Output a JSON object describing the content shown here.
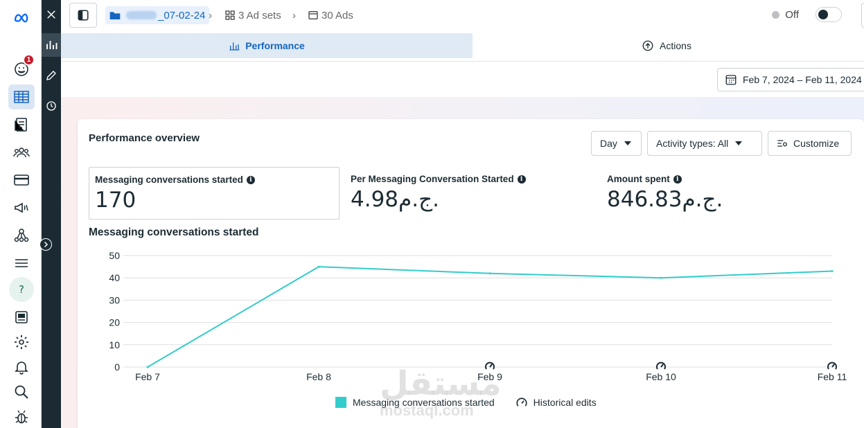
{
  "topbar": {
    "campaign_suffix": "_07-02-24",
    "adsets": "3 Ad sets",
    "ads": "30 Ads",
    "status": "Off"
  },
  "tabs": {
    "performance": "Performance",
    "actions": "Actions"
  },
  "date_range": "Feb 7, 2024 – Feb 11, 2024",
  "sidebar": {
    "notification_count": "1"
  },
  "card": {
    "title": "Performance overview",
    "day_label": "Day",
    "activity_label": "Activity types: All",
    "customize_label": "Customize"
  },
  "metrics": [
    {
      "label": "Messaging conversations started",
      "value": "170"
    },
    {
      "label": "Per Messaging Conversation Started",
      "value": "4.98ج.م."
    },
    {
      "label": "Amount spent",
      "value": "846.83ج.م."
    }
  ],
  "chart_data": {
    "type": "line",
    "title": "Messaging conversations started",
    "categories": [
      "Feb 7",
      "Feb 8",
      "Feb 9",
      "Feb 10",
      "Feb 11"
    ],
    "series": [
      {
        "name": "Messaging conversations started",
        "values": [
          0,
          45,
          42,
          40,
          43
        ],
        "color": "#33cccc"
      }
    ],
    "y_ticks": [
      0,
      10,
      20,
      30,
      40,
      50
    ],
    "ylim": [
      0,
      50
    ],
    "historical_edit_markers": [
      "Feb 9",
      "Feb 10",
      "Feb 11"
    ],
    "legend": [
      "Messaging conversations started",
      "Historical edits"
    ],
    "grid": true
  },
  "watermark": {
    "arabic": "مستقل",
    "latin": "mostaql.com"
  }
}
